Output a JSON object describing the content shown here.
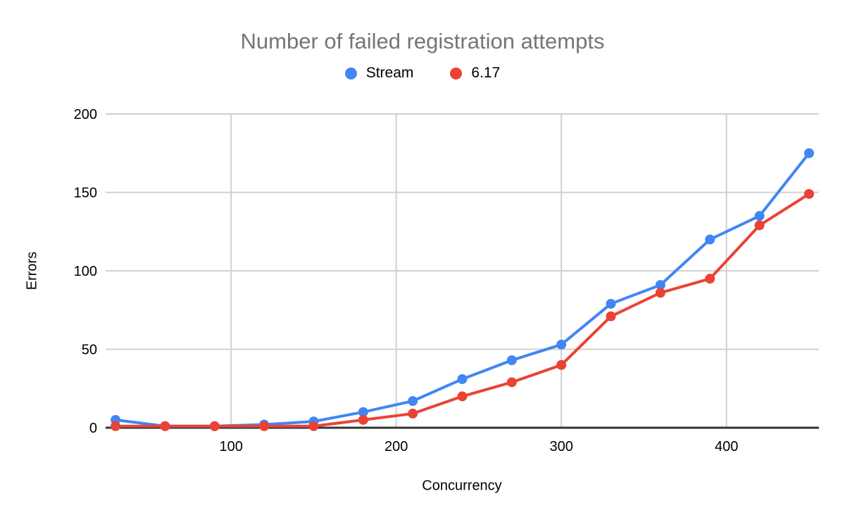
{
  "chart_data": {
    "type": "line",
    "title": "Number of failed registration attempts",
    "xlabel": "Concurrency",
    "ylabel": "Errors",
    "x": [
      30,
      60,
      90,
      120,
      150,
      180,
      210,
      240,
      270,
      300,
      330,
      360,
      390,
      420,
      450
    ],
    "series": [
      {
        "name": "Stream",
        "color": "#4285f4",
        "values": [
          5,
          1,
          1,
          2,
          4,
          10,
          17,
          31,
          43,
          53,
          79,
          91,
          120,
          135,
          175
        ]
      },
      {
        "name": "6.17",
        "color": "#ea4335",
        "values": [
          1,
          1,
          1,
          1,
          1,
          5,
          9,
          20,
          29,
          40,
          71,
          86,
          95,
          129,
          149
        ]
      }
    ],
    "x_ticks": [
      100,
      200,
      300,
      400
    ],
    "y_ticks": [
      0,
      50,
      100,
      150,
      200
    ],
    "xlim": [
      24,
      456
    ],
    "ylim": [
      0,
      200
    ],
    "grid": true,
    "legend_position": "top",
    "marker": "circle",
    "colors": {
      "title_text": "#757575",
      "axis_text": "#000000",
      "gridline": "#d0d0d0",
      "axis_line": "#333333",
      "background": "#ffffff"
    }
  }
}
